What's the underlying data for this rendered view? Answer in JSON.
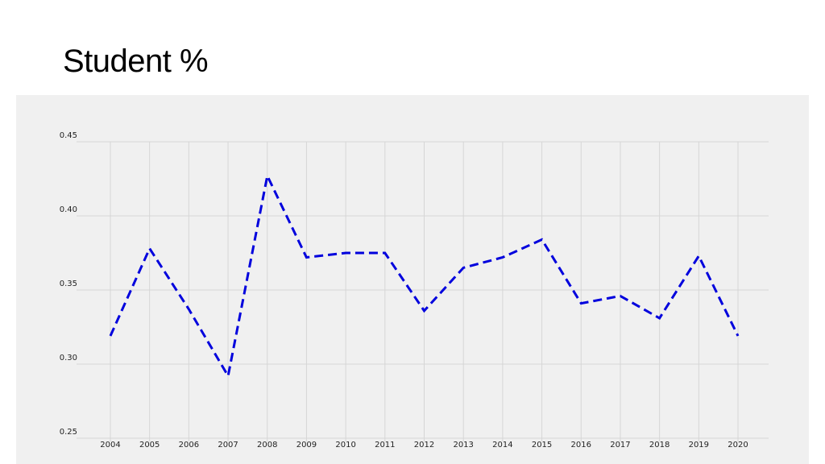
{
  "slide": {
    "title": "Student %"
  },
  "chart_data": {
    "type": "line",
    "title": "",
    "xlabel": "",
    "ylabel": "",
    "x": [
      "2004",
      "2005",
      "2006",
      "2007",
      "2008",
      "2009",
      "2010",
      "2011",
      "2012",
      "2013",
      "2014",
      "2015",
      "2016",
      "2017",
      "2018",
      "2019",
      "2020"
    ],
    "series": [
      {
        "values": [
          0.319,
          0.378,
          0.337,
          0.292,
          0.427,
          0.372,
          0.375,
          0.375,
          0.336,
          0.365,
          0.372,
          0.384,
          0.341,
          0.346,
          0.331,
          0.373,
          0.319
        ],
        "color": "#0000dd",
        "line_style": "dashed"
      }
    ],
    "ylim": [
      0.25,
      0.45
    ],
    "yticks": [
      "0.25",
      "0.30",
      "0.35",
      "0.40",
      "0.45"
    ],
    "grid": true,
    "legend": "none",
    "background": "#f0f0f0",
    "grid_color": "#d6d6d6"
  }
}
